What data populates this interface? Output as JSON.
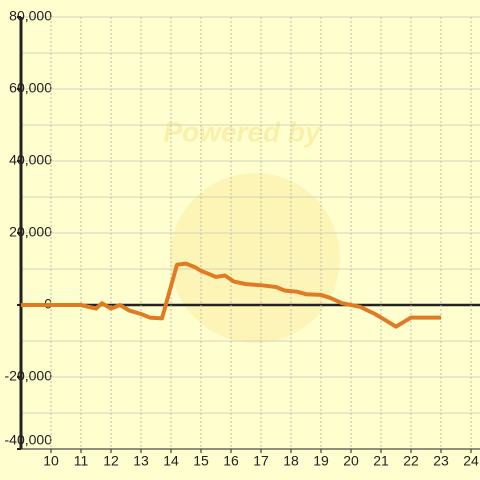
{
  "chart_data": {
    "type": "line",
    "watermark": "Powered by",
    "x": [
      9,
      11,
      11.5,
      11.7,
      12,
      12.3,
      12.6,
      13,
      13.3,
      13.7,
      14.2,
      14.5,
      14.8,
      15,
      15.5,
      15.8,
      16.1,
      16.5,
      17,
      17.5,
      17.8,
      18.2,
      18.5,
      19,
      19.3,
      19.7,
      20,
      20.3,
      20.8,
      21.2,
      21.5,
      21.8,
      22,
      23
    ],
    "series": [
      {
        "color": "#e07b24",
        "values": [
          0,
          0,
          -1000,
          500,
          -1000,
          0,
          -1500,
          -2500,
          -3500,
          -3700,
          11200,
          11500,
          10500,
          9500,
          7800,
          8200,
          6500,
          5800,
          5500,
          5000,
          4000,
          3700,
          3000,
          2800,
          2000,
          500,
          0,
          -500,
          -2500,
          -4500,
          -6000,
          -4500,
          -3500,
          -3500
        ]
      }
    ],
    "xlim": [
      9,
      24.3
    ],
    "xticks": [
      10,
      11,
      12,
      13,
      14,
      15,
      16,
      17,
      18,
      19,
      20,
      21,
      22,
      23,
      24
    ],
    "ylim": [
      -40000,
      80000
    ],
    "yticks": [
      {
        "value": -40000,
        "label": "-40,000"
      },
      {
        "value": -20000,
        "label": "-20,000"
      },
      0,
      {
        "value": 20000,
        "label": "20,000"
      },
      {
        "value": 40000,
        "label": "40,000"
      },
      {
        "value": 60000,
        "label": "60,000"
      },
      {
        "value": 80000,
        "label": "80,000"
      }
    ],
    "y_minor_grid": [
      -30000,
      -10000,
      10000,
      30000,
      50000,
      70000
    ],
    "grid": true
  }
}
